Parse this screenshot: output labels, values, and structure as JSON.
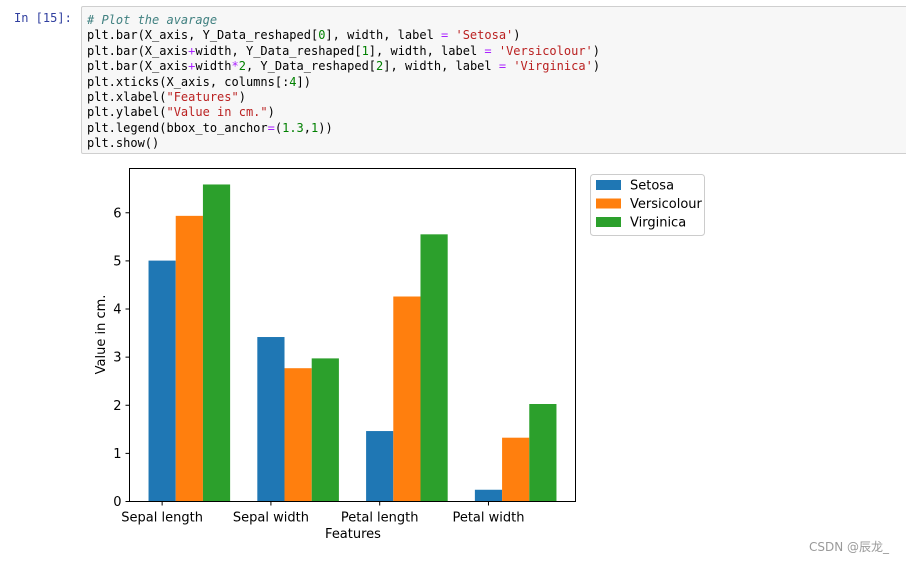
{
  "cell": {
    "prompt": "In  [15]:",
    "code_lines": [
      [
        {
          "t": "# Plot the avarage",
          "c": "cm"
        }
      ],
      [
        {
          "t": "plt.bar(X_axis, Y_Data_reshaped[",
          "c": "pl"
        },
        {
          "t": "0",
          "c": "nu"
        },
        {
          "t": "], width, label ",
          "c": "pl"
        },
        {
          "t": "=",
          "c": "op"
        },
        {
          "t": " ",
          "c": "pl"
        },
        {
          "t": "'Setosa'",
          "c": "st"
        },
        {
          "t": ")",
          "c": "pl"
        }
      ],
      [
        {
          "t": "plt.bar(X_axis",
          "c": "pl"
        },
        {
          "t": "+",
          "c": "op"
        },
        {
          "t": "width, Y_Data_reshaped[",
          "c": "pl"
        },
        {
          "t": "1",
          "c": "nu"
        },
        {
          "t": "], width, label ",
          "c": "pl"
        },
        {
          "t": "=",
          "c": "op"
        },
        {
          "t": " ",
          "c": "pl"
        },
        {
          "t": "'Versicolour'",
          "c": "st"
        },
        {
          "t": ")",
          "c": "pl"
        }
      ],
      [
        {
          "t": "plt.bar(X_axis",
          "c": "pl"
        },
        {
          "t": "+",
          "c": "op"
        },
        {
          "t": "width",
          "c": "pl"
        },
        {
          "t": "*",
          "c": "op"
        },
        {
          "t": "2",
          "c": "nu"
        },
        {
          "t": ", Y_Data_reshaped[",
          "c": "pl"
        },
        {
          "t": "2",
          "c": "nu"
        },
        {
          "t": "], width, label ",
          "c": "pl"
        },
        {
          "t": "=",
          "c": "op"
        },
        {
          "t": " ",
          "c": "pl"
        },
        {
          "t": "'Virginica'",
          "c": "st"
        },
        {
          "t": ")",
          "c": "pl"
        }
      ],
      [
        {
          "t": "plt.xticks(X_axis, columns[:",
          "c": "pl"
        },
        {
          "t": "4",
          "c": "nu"
        },
        {
          "t": "])",
          "c": "pl"
        }
      ],
      [
        {
          "t": "plt.xlabel(",
          "c": "pl"
        },
        {
          "t": "\"Features\"",
          "c": "st"
        },
        {
          "t": ")",
          "c": "pl"
        }
      ],
      [
        {
          "t": "plt.ylabel(",
          "c": "pl"
        },
        {
          "t": "\"Value in cm.\"",
          "c": "st"
        },
        {
          "t": ")",
          "c": "pl"
        }
      ],
      [
        {
          "t": "plt.legend(bbox_to_anchor",
          "c": "pl"
        },
        {
          "t": "=",
          "c": "op"
        },
        {
          "t": "(",
          "c": "pl"
        },
        {
          "t": "1.3",
          "c": "nu"
        },
        {
          "t": ",",
          "c": "pl"
        },
        {
          "t": "1",
          "c": "nu"
        },
        {
          "t": "))",
          "c": "pl"
        }
      ],
      [
        {
          "t": "plt.show()",
          "c": "pl"
        }
      ]
    ]
  },
  "chart_data": {
    "type": "bar",
    "categories": [
      "Sepal length",
      "Sepal width",
      "Petal length",
      "Petal width"
    ],
    "series": [
      {
        "name": "Setosa",
        "color": "#1f77b4",
        "values": [
          5.006,
          3.418,
          1.464,
          0.244
        ]
      },
      {
        "name": "Versicolour",
        "color": "#ff7f0e",
        "values": [
          5.936,
          2.77,
          4.26,
          1.326
        ]
      },
      {
        "name": "Virginica",
        "color": "#2ca02c",
        "values": [
          6.588,
          2.974,
          5.552,
          2.026
        ]
      }
    ],
    "xlabel": "Features",
    "ylabel": "Value in cm.",
    "ylim": [
      0,
      6.92
    ],
    "yticks": [
      0,
      1,
      2,
      3,
      4,
      5,
      6
    ],
    "grid": false,
    "legend": "outside-top-right"
  },
  "watermark": "CSDN @辰龙_"
}
